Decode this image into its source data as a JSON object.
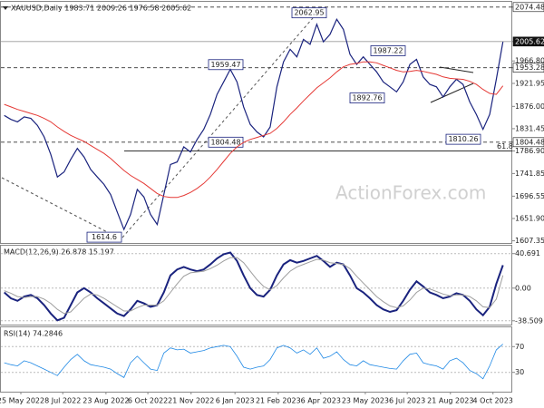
{
  "chart_data": {
    "type": "line",
    "title": "XAUUSD,Daily 1983.71 2009.26 1976.58 2005.62",
    "watermark": "ActionForex.com",
    "xticks": [
      {
        "value": 2.5,
        "label": "25 May 2022"
      },
      {
        "value": 8.8,
        "label": "8 Jul 2022"
      },
      {
        "value": 15.3,
        "label": "23 Aug 2022"
      },
      {
        "value": 21.6,
        "label": "6 Oct 2022"
      },
      {
        "value": 28.1,
        "label": "21 Nov 2022"
      },
      {
        "value": 34.7,
        "label": "6 Jan 2023"
      },
      {
        "value": 41.2,
        "label": "21 Feb 2023"
      },
      {
        "value": 47.6,
        "label": "6 Apr 2023"
      },
      {
        "value": 54.3,
        "label": "23 May 2023"
      },
      {
        "value": 60.6,
        "label": "6 Jul 2023"
      },
      {
        "value": 67.1,
        "label": "21 Aug 2023"
      },
      {
        "value": 73.5,
        "label": "4 Oct 2023"
      }
    ],
    "xlim": [
      -0.5,
      76.4
    ],
    "ylim": [
      1603,
      2085
    ],
    "yticks": [
      {
        "value": 2074.48,
        "label": "2074.48"
      },
      {
        "value": 2005.62,
        "label": "2005.62"
      },
      {
        "value": 1966.8,
        "label": "1966.80"
      },
      {
        "value": 1953.28,
        "label": "1953.28"
      },
      {
        "value": 1921.95,
        "label": "1921.95"
      },
      {
        "value": 1876,
        "label": "1876.00"
      },
      {
        "value": 1831.45,
        "label": "1831.45"
      },
      {
        "value": 1804.48,
        "label": "1804.48"
      },
      {
        "value": 1786.9,
        "label": "1786.90"
      },
      {
        "value": 1741.85,
        "label": "1741.85"
      },
      {
        "value": 1696.55,
        "label": "1696.55"
      },
      {
        "value": 1651.9,
        "label": "1651.90"
      },
      {
        "value": 1607.35,
        "label": "1607.35"
      }
    ],
    "levels": [
      2074.48,
      2005.62,
      1953.28,
      1804.48
    ],
    "fib_level": 61.8,
    "annotations": [
      2062.95,
      1959.47,
      1987.22,
      1892.76,
      1804.48,
      1810.26,
      1614.6
    ],
    "series": [
      {
        "name": "XAUUSD",
        "color": "#1a237e",
        "values": [
          1858,
          1850,
          1845,
          1855,
          1852,
          1838,
          1815,
          1780,
          1735,
          1745,
          1770,
          1792,
          1775,
          1750,
          1735,
          1720,
          1700,
          1665,
          1630,
          1660,
          1710,
          1695,
          1660,
          1640,
          1700,
          1760,
          1765,
          1795,
          1785,
          1810,
          1830,
          1860,
          1900,
          1925,
          1950,
          1925,
          1875,
          1840,
          1825,
          1815,
          1835,
          1915,
          1965,
          1990,
          1975,
          2010,
          2000,
          2040,
          2005,
          2020,
          2050,
          2030,
          1980,
          1960,
          1975,
          1960,
          1945,
          1925,
          1915,
          1905,
          1925,
          1960,
          1970,
          1935,
          1920,
          1915,
          1895,
          1915,
          1930,
          1920,
          1885,
          1860,
          1830,
          1860,
          1930,
          2005
        ]
      },
      {
        "name": "MA",
        "color": "#e53935",
        "values": [
          1880,
          1875,
          1870,
          1866,
          1862,
          1858,
          1852,
          1845,
          1835,
          1826,
          1818,
          1812,
          1806,
          1798,
          1790,
          1782,
          1772,
          1760,
          1748,
          1738,
          1730,
          1722,
          1712,
          1702,
          1696,
          1694,
          1694,
          1698,
          1704,
          1712,
          1722,
          1735,
          1750,
          1766,
          1782,
          1795,
          1804,
          1810,
          1814,
          1818,
          1822,
          1832,
          1845,
          1860,
          1873,
          1887,
          1900,
          1913,
          1923,
          1933,
          1945,
          1955,
          1960,
          1962,
          1965,
          1965,
          1963,
          1958,
          1953,
          1948,
          1945,
          1946,
          1948,
          1946,
          1943,
          1940,
          1935,
          1932,
          1931,
          1930,
          1926,
          1920,
          1910,
          1902,
          1900,
          1917
        ]
      }
    ],
    "macd": {
      "title": "MACD(12,26,9) 26.878 15.197",
      "ylim": [
        -43,
        50
      ],
      "yticks": [
        40.691,
        {
          "value": 0,
          "label": "0.00"
        },
        -38.509
      ],
      "series": [
        {
          "name": "MACD",
          "color": "#1a237e",
          "values": [
            -5,
            -12,
            -15,
            -10,
            -8,
            -12,
            -20,
            -30,
            -38,
            -35,
            -20,
            -5,
            0,
            -5,
            -12,
            -18,
            -24,
            -30,
            -33,
            -25,
            -15,
            -18,
            -22,
            -20,
            -5,
            15,
            22,
            25,
            22,
            20,
            22,
            28,
            35,
            40,
            42,
            32,
            15,
            0,
            -8,
            -10,
            -2,
            15,
            28,
            33,
            30,
            32,
            35,
            38,
            32,
            25,
            30,
            28,
            15,
            0,
            -5,
            -12,
            -20,
            -25,
            -28,
            -26,
            -15,
            -2,
            8,
            2,
            -5,
            -8,
            -12,
            -10,
            -6,
            -8,
            -15,
            -25,
            -32,
            -22,
            5,
            27
          ]
        },
        {
          "name": "Signal",
          "color": "#9e9e9e",
          "values": [
            -3,
            -6,
            -10,
            -11,
            -10,
            -10,
            -13,
            -18,
            -25,
            -30,
            -28,
            -20,
            -12,
            -7,
            -8,
            -12,
            -17,
            -22,
            -27,
            -27,
            -23,
            -20,
            -20,
            -20,
            -15,
            -5,
            5,
            14,
            18,
            19,
            20,
            23,
            27,
            32,
            36,
            36,
            30,
            20,
            10,
            2,
            -2,
            3,
            12,
            20,
            25,
            28,
            31,
            34,
            33,
            30,
            29,
            28,
            23,
            14,
            6,
            -2,
            -10,
            -16,
            -21,
            -23,
            -21,
            -14,
            -5,
            0,
            -1,
            -4,
            -7,
            -9,
            -8,
            -8,
            -10,
            -15,
            -22,
            -23,
            -13,
            15
          ]
        }
      ]
    },
    "rsi": {
      "title": "RSI(14) 74.2846",
      "ylim": [
        0,
        100
      ],
      "yticks": [
        70,
        30
      ],
      "series": [
        {
          "name": "RSI",
          "color": "#1e88e5",
          "values": [
            45,
            42,
            40,
            48,
            45,
            40,
            35,
            30,
            25,
            38,
            50,
            58,
            48,
            42,
            40,
            38,
            35,
            28,
            22,
            45,
            55,
            45,
            35,
            33,
            60,
            68,
            65,
            66,
            60,
            62,
            64,
            68,
            70,
            72,
            70,
            55,
            38,
            35,
            38,
            40,
            50,
            68,
            72,
            68,
            60,
            65,
            58,
            68,
            52,
            55,
            62,
            50,
            42,
            40,
            48,
            42,
            40,
            38,
            36,
            35,
            48,
            58,
            60,
            45,
            42,
            40,
            35,
            48,
            52,
            45,
            33,
            28,
            20,
            40,
            65,
            74
          ]
        }
      ]
    }
  }
}
